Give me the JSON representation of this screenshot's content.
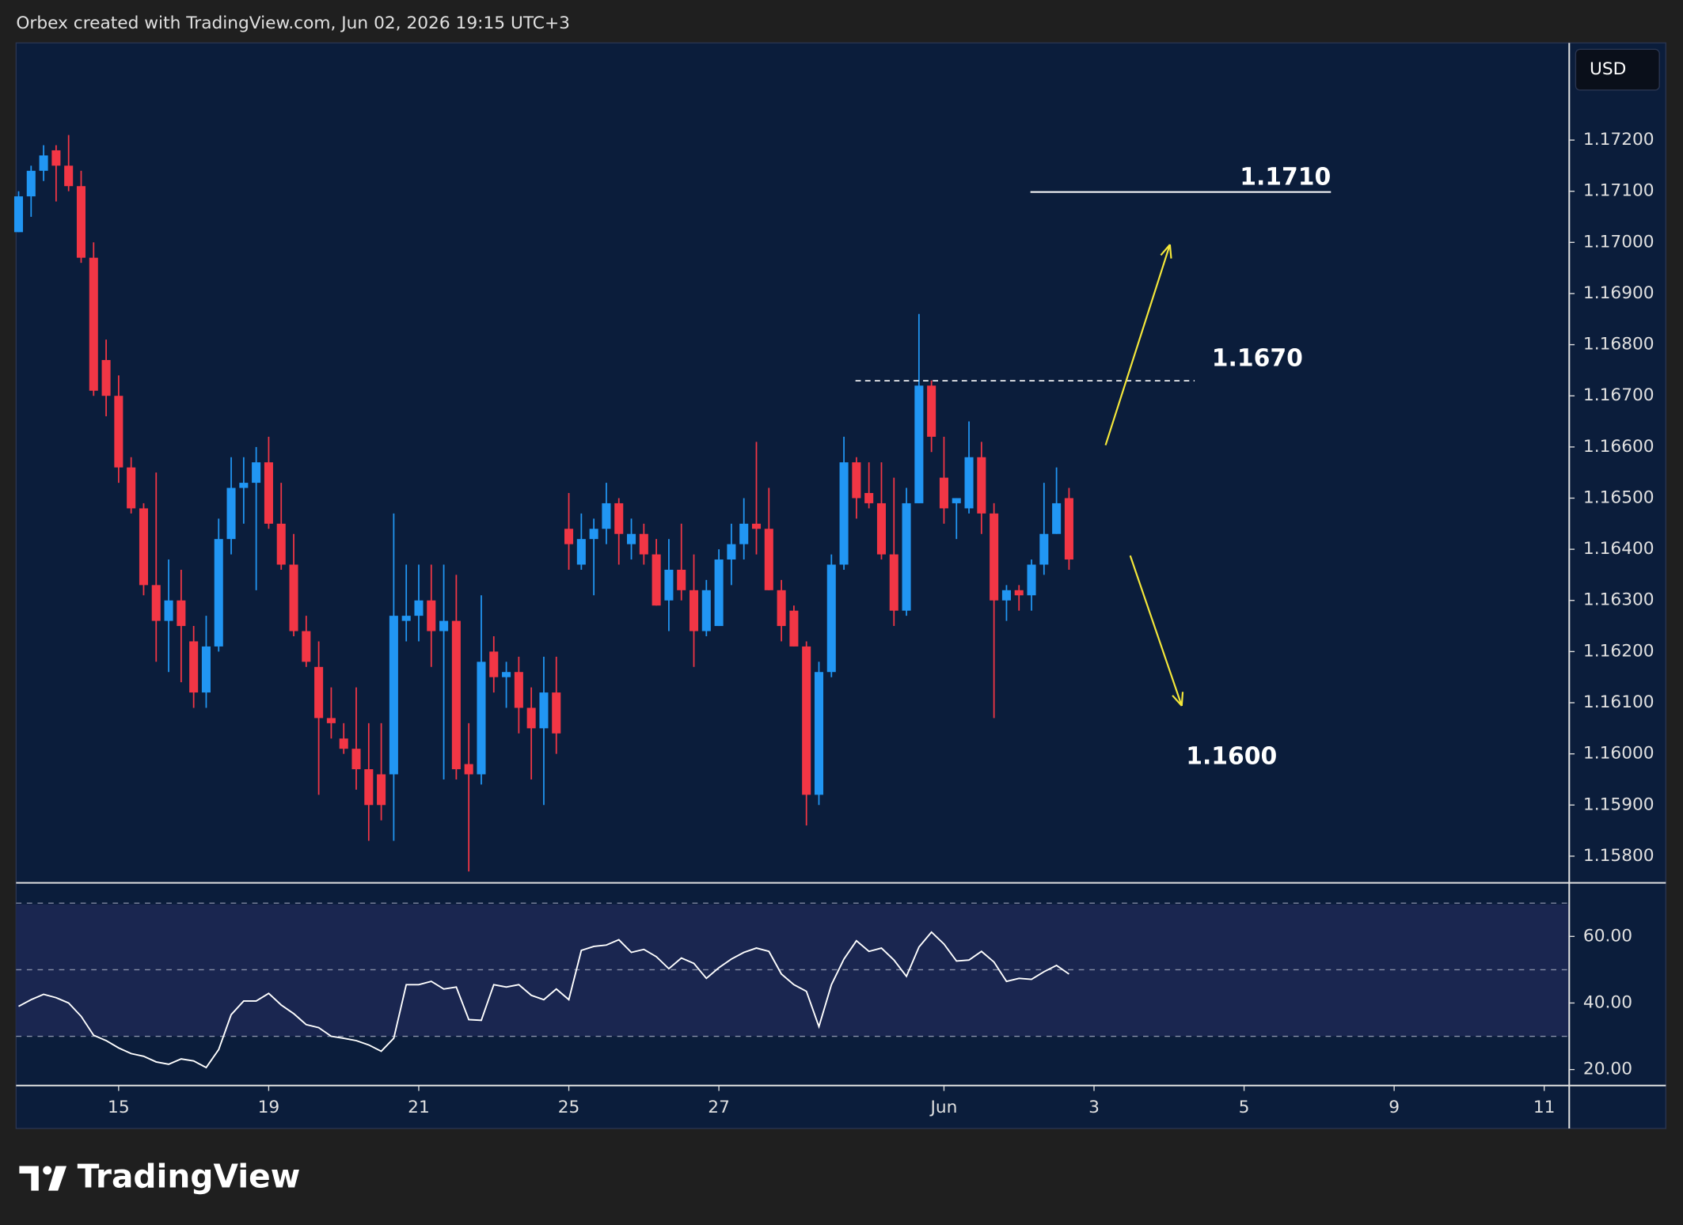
{
  "header": {
    "text": "Orbex created with TradingView.com, Jun 02, 2026 19:15 UTC+3"
  },
  "chart_data": {
    "type": "candlestick",
    "currency": "USD",
    "up_color": "#2196f3",
    "down_color": "#f23645",
    "open": [
      1.1702,
      1.1709,
      1.1714,
      1.1718,
      1.1715,
      1.1711,
      1.1697,
      1.1677,
      1.167,
      1.1656,
      1.1648,
      1.1633,
      1.1626,
      1.163,
      1.1622,
      1.1612,
      1.1621,
      1.1642,
      1.1652,
      1.1653,
      1.1657,
      1.1645,
      1.1637,
      1.1624,
      1.1617,
      1.1607,
      1.1603,
      1.1601,
      1.1597,
      1.1596,
      1.1596,
      1.1626,
      1.1627,
      1.163,
      1.1624,
      1.1626,
      1.1598,
      1.1596,
      1.162,
      1.1615,
      1.1616,
      1.1609,
      1.1605,
      1.1612,
      1.1644,
      1.1637,
      1.1642,
      1.1644,
      1.1649,
      1.1641,
      1.1643,
      1.1639,
      1.163,
      1.1636,
      1.1632,
      1.1624,
      1.1625,
      1.1638,
      1.1641,
      1.1645,
      1.1644,
      1.1632,
      1.1628,
      1.1621,
      1.1592,
      1.1616,
      1.1637,
      1.1657,
      1.1651,
      1.1649,
      1.1639,
      1.1628,
      1.1649,
      1.1672,
      1.1654,
      1.1649,
      1.1648,
      1.1658,
      1.1647,
      1.163,
      1.1632,
      1.1631,
      1.1637,
      1.1643,
      1.165
    ],
    "high": [
      1.171,
      1.1715,
      1.1719,
      1.1719,
      1.1721,
      1.1714,
      1.17,
      1.1681,
      1.1674,
      1.1658,
      1.1649,
      1.1655,
      1.1638,
      1.1636,
      1.1625,
      1.1627,
      1.1646,
      1.1658,
      1.1658,
      1.166,
      1.1662,
      1.1653,
      1.1643,
      1.1627,
      1.1622,
      1.1613,
      1.1606,
      1.1613,
      1.1606,
      1.1606,
      1.1647,
      1.1637,
      1.1637,
      1.1637,
      1.1637,
      1.1635,
      1.1606,
      1.1631,
      1.1623,
      1.1618,
      1.1619,
      1.1613,
      1.1619,
      1.1619,
      1.1651,
      1.1647,
      1.1646,
      1.1653,
      1.165,
      1.1646,
      1.1645,
      1.1642,
      1.1642,
      1.1645,
      1.1639,
      1.1634,
      1.164,
      1.1645,
      1.165,
      1.1661,
      1.1652,
      1.1634,
      1.1629,
      1.1622,
      1.1618,
      1.1639,
      1.1662,
      1.1658,
      1.1657,
      1.1657,
      1.1654,
      1.1652,
      1.1686,
      1.1673,
      1.1662,
      1.165,
      1.1665,
      1.1661,
      1.1649,
      1.1633,
      1.1633,
      1.1638,
      1.1653,
      1.1656,
      1.1652
    ],
    "low": [
      1.1702,
      1.1705,
      1.1712,
      1.1708,
      1.171,
      1.1696,
      1.167,
      1.1666,
      1.1653,
      1.1647,
      1.1631,
      1.1618,
      1.1616,
      1.1614,
      1.1609,
      1.1609,
      1.162,
      1.1639,
      1.1645,
      1.1632,
      1.1644,
      1.1636,
      1.1623,
      1.1617,
      1.1592,
      1.1603,
      1.16,
      1.1593,
      1.1583,
      1.1587,
      1.1583,
      1.1622,
      1.1622,
      1.1617,
      1.1595,
      1.1595,
      1.1577,
      1.1594,
      1.1612,
      1.1609,
      1.1604,
      1.1595,
      1.159,
      1.16,
      1.1636,
      1.1636,
      1.1631,
      1.1641,
      1.1637,
      1.1638,
      1.1637,
      1.1629,
      1.1624,
      1.163,
      1.1617,
      1.1623,
      1.1625,
      1.1633,
      1.1638,
      1.1639,
      1.1632,
      1.1622,
      1.1621,
      1.1586,
      1.159,
      1.1615,
      1.1636,
      1.1646,
      1.1648,
      1.1638,
      1.1625,
      1.1627,
      1.1649,
      1.1659,
      1.1645,
      1.1642,
      1.1647,
      1.1643,
      1.1607,
      1.1626,
      1.1628,
      1.1628,
      1.1635,
      1.1643,
      1.1636
    ],
    "close": [
      1.1709,
      1.1714,
      1.1717,
      1.1715,
      1.1711,
      1.1697,
      1.1671,
      1.167,
      1.1656,
      1.1648,
      1.1633,
      1.1626,
      1.163,
      1.1625,
      1.1612,
      1.1621,
      1.1642,
      1.1652,
      1.1653,
      1.1657,
      1.1645,
      1.1637,
      1.1624,
      1.1618,
      1.1607,
      1.1606,
      1.1601,
      1.1597,
      1.159,
      1.159,
      1.1627,
      1.1627,
      1.163,
      1.1624,
      1.1626,
      1.1597,
      1.1596,
      1.1618,
      1.1615,
      1.1616,
      1.1609,
      1.1605,
      1.1612,
      1.1604,
      1.1641,
      1.1642,
      1.1644,
      1.1649,
      1.1643,
      1.1643,
      1.1639,
      1.1629,
      1.1636,
      1.1632,
      1.1624,
      1.1632,
      1.1638,
      1.1641,
      1.1645,
      1.1644,
      1.1632,
      1.1625,
      1.1621,
      1.1592,
      1.1616,
      1.1637,
      1.1657,
      1.165,
      1.1649,
      1.1639,
      1.1628,
      1.1649,
      1.1672,
      1.1662,
      1.1648,
      1.165,
      1.1658,
      1.1647,
      1.163,
      1.1632,
      1.1631,
      1.1637,
      1.1643,
      1.1649,
      1.1638
    ],
    "xlim": [
      -0.2,
      124
    ],
    "xticks": [
      {
        "value": 8,
        "label": "15"
      },
      {
        "value": 20,
        "label": "19"
      },
      {
        "value": 32,
        "label": "21"
      },
      {
        "value": 44,
        "label": "25"
      },
      {
        "value": 56,
        "label": "27"
      },
      {
        "value": 74,
        "label": "Jun"
      },
      {
        "value": 86,
        "label": "3"
      },
      {
        "value": 98,
        "label": "5"
      },
      {
        "value": 110,
        "label": "9"
      },
      {
        "value": 122,
        "label": "11"
      }
    ],
    "ylim": [
      1.1575,
      1.1739
    ],
    "yticks": [
      {
        "value": 1.158,
        "label": "1.15800"
      },
      {
        "value": 1.159,
        "label": "1.15900"
      },
      {
        "value": 1.16,
        "label": "1.16000"
      },
      {
        "value": 1.161,
        "label": "1.16100"
      },
      {
        "value": 1.162,
        "label": "1.16200"
      },
      {
        "value": 1.163,
        "label": "1.16300"
      },
      {
        "value": 1.164,
        "label": "1.16400"
      },
      {
        "value": 1.165,
        "label": "1.16500"
      },
      {
        "value": 1.166,
        "label": "1.16600"
      },
      {
        "value": 1.167,
        "label": "1.16700"
      },
      {
        "value": 1.168,
        "label": "1.16800"
      },
      {
        "value": 1.169,
        "label": "1.16900"
      },
      {
        "value": 1.17,
        "label": "1.17000"
      },
      {
        "value": 1.171,
        "label": "1.17100"
      },
      {
        "value": 1.172,
        "label": "1.17200"
      }
    ],
    "annotations": [
      "1.1710",
      "1.1670",
      "1.1600"
    ],
    "indicator": {
      "type": "line",
      "color": "#ffffff",
      "values": [
        39,
        41,
        42.6,
        41.6,
        40,
        36,
        30.3,
        28.7,
        26.5,
        24.8,
        24,
        22.3,
        21.6,
        23.2,
        22.6,
        20.6,
        26,
        36.5,
        40.6,
        40.6,
        42.9,
        39.4,
        36.8,
        33.5,
        32.6,
        30,
        29.4,
        28.7,
        27.4,
        25.5,
        29.4,
        45.5,
        45.5,
        46.5,
        44.2,
        44.8,
        35,
        34.8,
        45.5,
        44.8,
        45.5,
        42.3,
        41,
        44.2,
        41,
        55.8,
        57,
        57.4,
        59,
        55.2,
        56.1,
        53.9,
        50.3,
        53.5,
        51.9,
        47.4,
        50.6,
        53.2,
        55.2,
        56.5,
        55.5,
        48.7,
        45.5,
        43.5,
        32.9,
        45.5,
        53.2,
        58.7,
        55.5,
        56.5,
        52.9,
        48,
        56.8,
        61.3,
        57.7,
        52.6,
        52.9,
        55.5,
        52.3,
        46.5,
        47.4,
        47.1,
        49.4,
        51.3,
        48.7
      ],
      "ylim": [
        15.2,
        76.1
      ],
      "yticks": [
        {
          "value": 20,
          "label": "20.00"
        },
        {
          "value": 40,
          "label": "40.00"
        },
        {
          "value": 60,
          "label": "60.00"
        }
      ],
      "levels": [
        30,
        50,
        70
      ]
    }
  },
  "footer": {
    "brand": "TradingView"
  }
}
